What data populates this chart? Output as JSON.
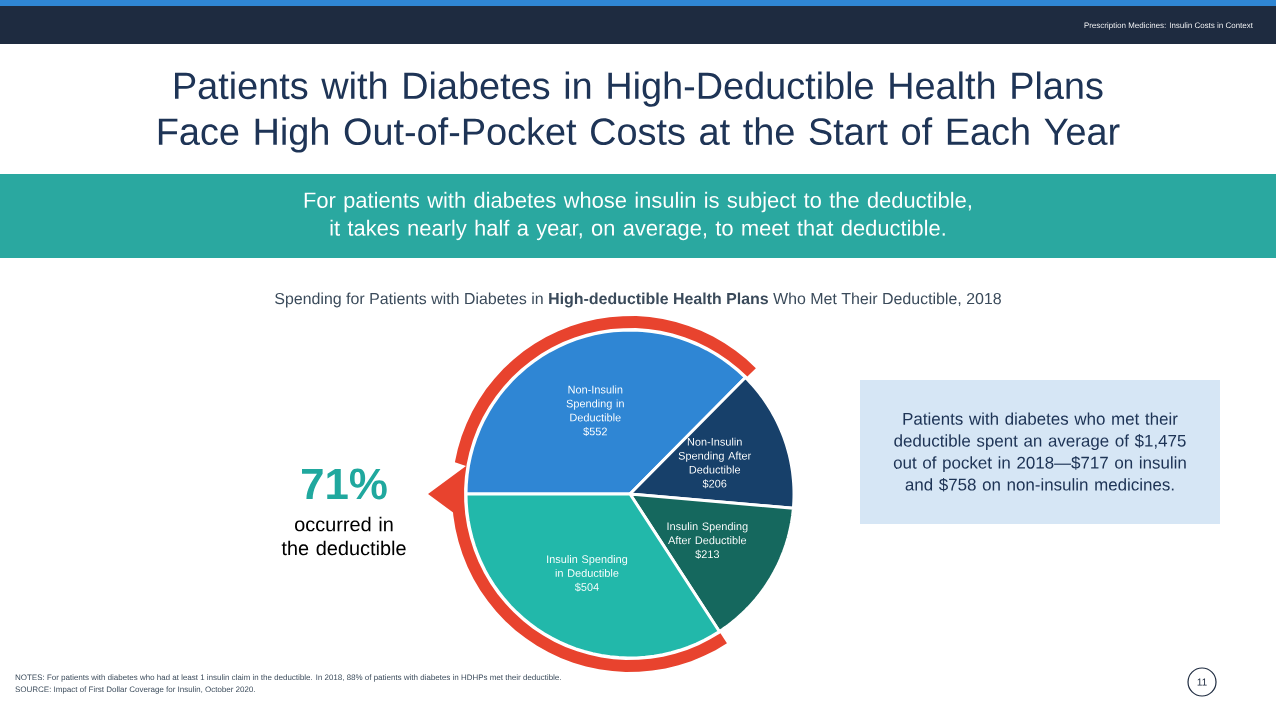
{
  "chart_data": {
    "type": "pie",
    "title": "Patients with Diabetes in High-Deductible Health Plans Face High Out-of-Pocket Costs at the Start of Each Year",
    "subtitle": "For patients with diabetes whose insulin is subject to the deductible, it takes nearly half a year, on average, to meet that deductible.",
    "categories": [
      "Non-Insulin Spending in Deductible",
      "Non-Insulin Spending After Deductible",
      "Insulin Spending After Deductible",
      "Insulin Spending in Deductible"
    ],
    "values": [
      552,
      206,
      213,
      504
    ],
    "value_labels": [
      "$552",
      "$206",
      "$213",
      "$504"
    ],
    "colors": [
      "#2f86d4",
      "#17406a",
      "#15685e",
      "#22b8aa"
    ],
    "annotations": [
      "Prescription Medicines: Insulin Costs in Context",
      "Spending for Patients with Diabetes in **High-deductible Health Plans** Who Met Their Deductible, 2018",
      "71%",
      "occurred in the deductible",
      "Patients with diabetes who met their deductible spent an average of $1,475 out of pocket in 2018—$717 on insulin and $758 on non-insulin medicines.",
      "NOTES: For patients with diabetes who had at least 1 insulin claim in the deductible. In 2018, 88% of patients with diabetes in HDHPs met their deductible.",
      "SOURCE: Impact of First Dollar Coverage for Insulin, October 2020.",
      "11"
    ]
  }
}
